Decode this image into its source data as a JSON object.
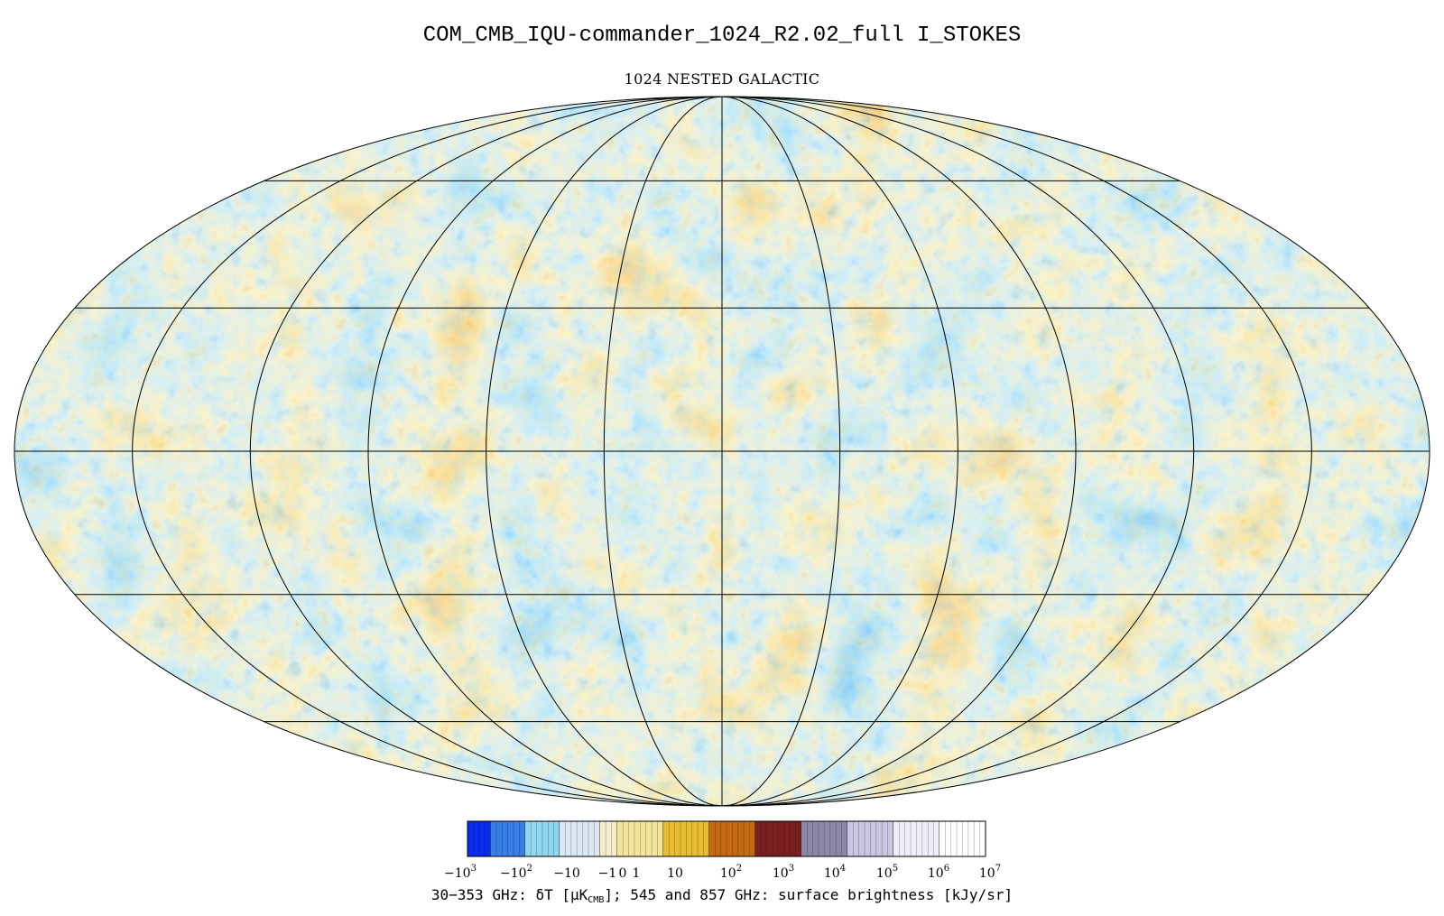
{
  "header": {
    "title": "COM_CMB_IQU-commander_1024_R2.02_full   I_STOKES",
    "subtitle": "1024 NESTED GALACTIC"
  },
  "map": {
    "projection": "mollweide",
    "graticule_longitudes_deg": [
      -180,
      -150,
      -120,
      -90,
      -60,
      -30,
      0,
      30,
      60,
      90,
      120,
      150,
      180
    ],
    "graticule_latitudes_deg": [
      -60,
      -30,
      0,
      30,
      60
    ],
    "palette": {
      "deep_blue": "#0a3fdc",
      "blue": "#2a7ae8",
      "light_blue": "#6cc3ee",
      "pale": "#f2e2a8",
      "orange": "#e59a2e",
      "dark_orange": "#c96a10"
    }
  },
  "colorbar": {
    "segments": [
      {
        "color": "#0a2bf0",
        "stripes": 4
      },
      {
        "color": "#3a7ee8",
        "stripes": 6
      },
      {
        "color": "#8fd6f0",
        "stripes": 6
      },
      {
        "color": "#dbe8f2",
        "stripes": 7
      },
      {
        "color": "#f5eecc",
        "stripes": 3
      },
      {
        "color": "#f3e59a",
        "stripes": 8
      },
      {
        "color": "#e7bd32",
        "stripes": 8
      },
      {
        "color": "#c56a12",
        "stripes": 8
      },
      {
        "color": "#7a1f1f",
        "stripes": 8
      },
      {
        "color": "#8e88a8",
        "stripes": 8
      },
      {
        "color": "#c8c6e0",
        "stripes": 8
      },
      {
        "color": "#eeeef6",
        "stripes": 8
      },
      {
        "color": "#ffffff",
        "stripes": 8
      }
    ],
    "tick_labels": [
      {
        "base": "−10",
        "exp": "3"
      },
      {
        "base": "−10",
        "exp": "2"
      },
      {
        "base": "−10",
        "exp": ""
      },
      {
        "base": "−1",
        "exp": ""
      },
      {
        "base": "0",
        "exp": ""
      },
      {
        "base": "1",
        "exp": ""
      },
      {
        "base": "10",
        "exp": ""
      },
      {
        "base": "10",
        "exp": "2"
      },
      {
        "base": "10",
        "exp": "3"
      },
      {
        "base": "10",
        "exp": "4"
      },
      {
        "base": "10",
        "exp": "5"
      },
      {
        "base": "10",
        "exp": "6"
      },
      {
        "base": "10",
        "exp": "7"
      }
    ]
  },
  "caption": {
    "prefix": "30−353 GHz: δT [μK",
    "sub": "CMB",
    "suffix": "]; 545 and 857 GHz: surface brightness [kJy/sr]"
  }
}
